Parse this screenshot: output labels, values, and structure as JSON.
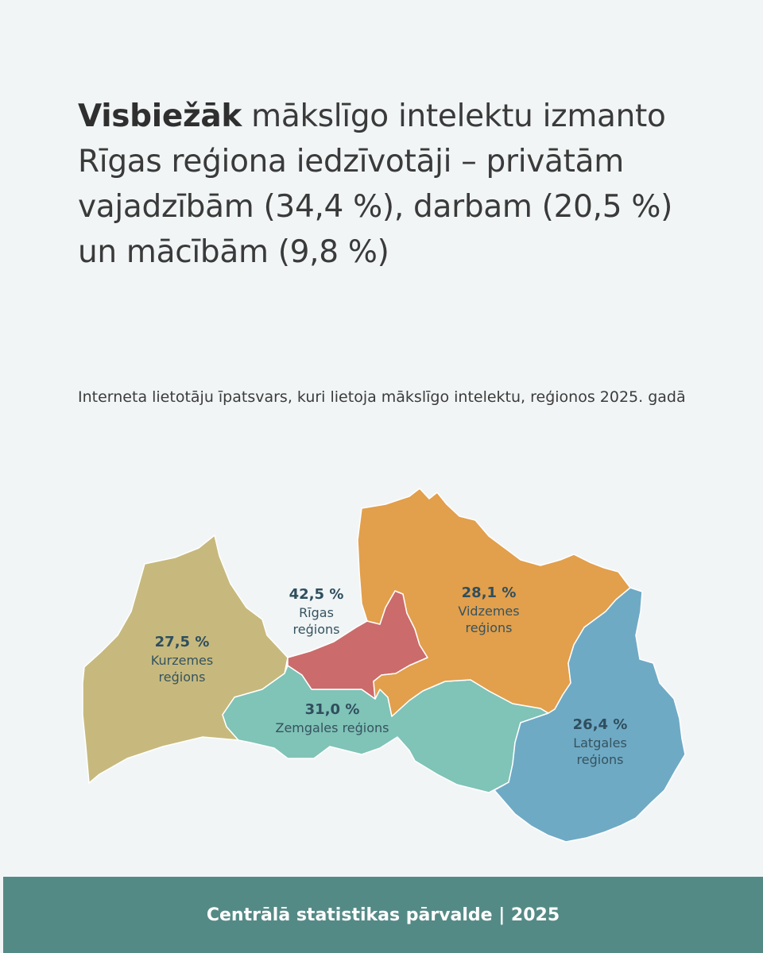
{
  "headline": {
    "bold": "Visbiežāk",
    "rest": " mākslīgo intelektu izmanto Rīgas reģiona iedzīvotāji – privātām vajadzībām (34,4 %), darbam (20,5 %) un mācībām (9,8 %)"
  },
  "subtitle": "Interneta lietotāju īpatsvars, kuri lietoja mākslīgo intelektu, reģionos 2025. gadā",
  "regions": [
    {
      "id": "kurzemes",
      "value": "27,5 %",
      "label_line1": "Kurzemes",
      "label_line2": "reģions",
      "color": "#c7b97d"
    },
    {
      "id": "rigas",
      "value": "42,5 %",
      "label_line1": "Rīgas",
      "label_line2": "reģions",
      "color": "#cc6b6b"
    },
    {
      "id": "vidzemes",
      "value": "28,1 %",
      "label_line1": "Vidzemes",
      "label_line2": "reģions",
      "color": "#e29f4c"
    },
    {
      "id": "zemgales",
      "value": "31,0 %",
      "label_line1": "Zemgales reģions",
      "label_line2": "",
      "color": "#80c3b7"
    },
    {
      "id": "latgales",
      "value": "26,4 %",
      "label_line1": "Latgales",
      "label_line2": "reģions",
      "color": "#6faac5"
    }
  ],
  "footer": "Centrālā statistikas pārvalde | 2025",
  "colors": {
    "background": "#f1f5f6",
    "footer_bg": "#548a86",
    "label_text": "#2f4e5e"
  }
}
